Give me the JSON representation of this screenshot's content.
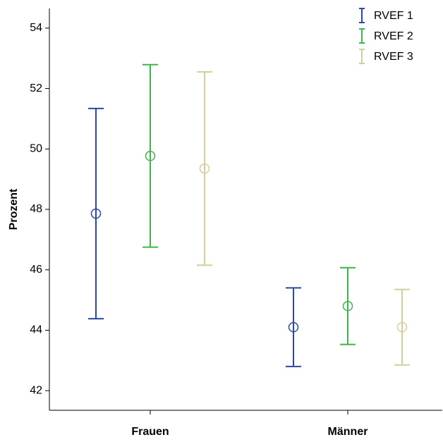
{
  "chart_data": {
    "type": "errorbar",
    "y_label": "Prozent",
    "categories": [
      "Frauen",
      "Männer"
    ],
    "series": [
      {
        "name": "RVEF 1",
        "color": "#2b48a6",
        "values": [
          47.86,
          44.1
        ],
        "errors": [
          3.48,
          1.3
        ]
      },
      {
        "name": "RVEF 2",
        "color": "#3cb64a",
        "values": [
          49.77,
          44.8
        ],
        "errors": [
          3.02,
          1.27
        ]
      },
      {
        "name": "RVEF 3",
        "color": "#d2cf9c",
        "values": [
          49.35,
          44.1
        ],
        "errors": [
          3.2,
          1.25
        ]
      }
    ],
    "ylim": [
      41.35,
      54.65
    ],
    "yticks": [
      42,
      44,
      46,
      48,
      50,
      52,
      54
    ],
    "legend": "top-right"
  }
}
